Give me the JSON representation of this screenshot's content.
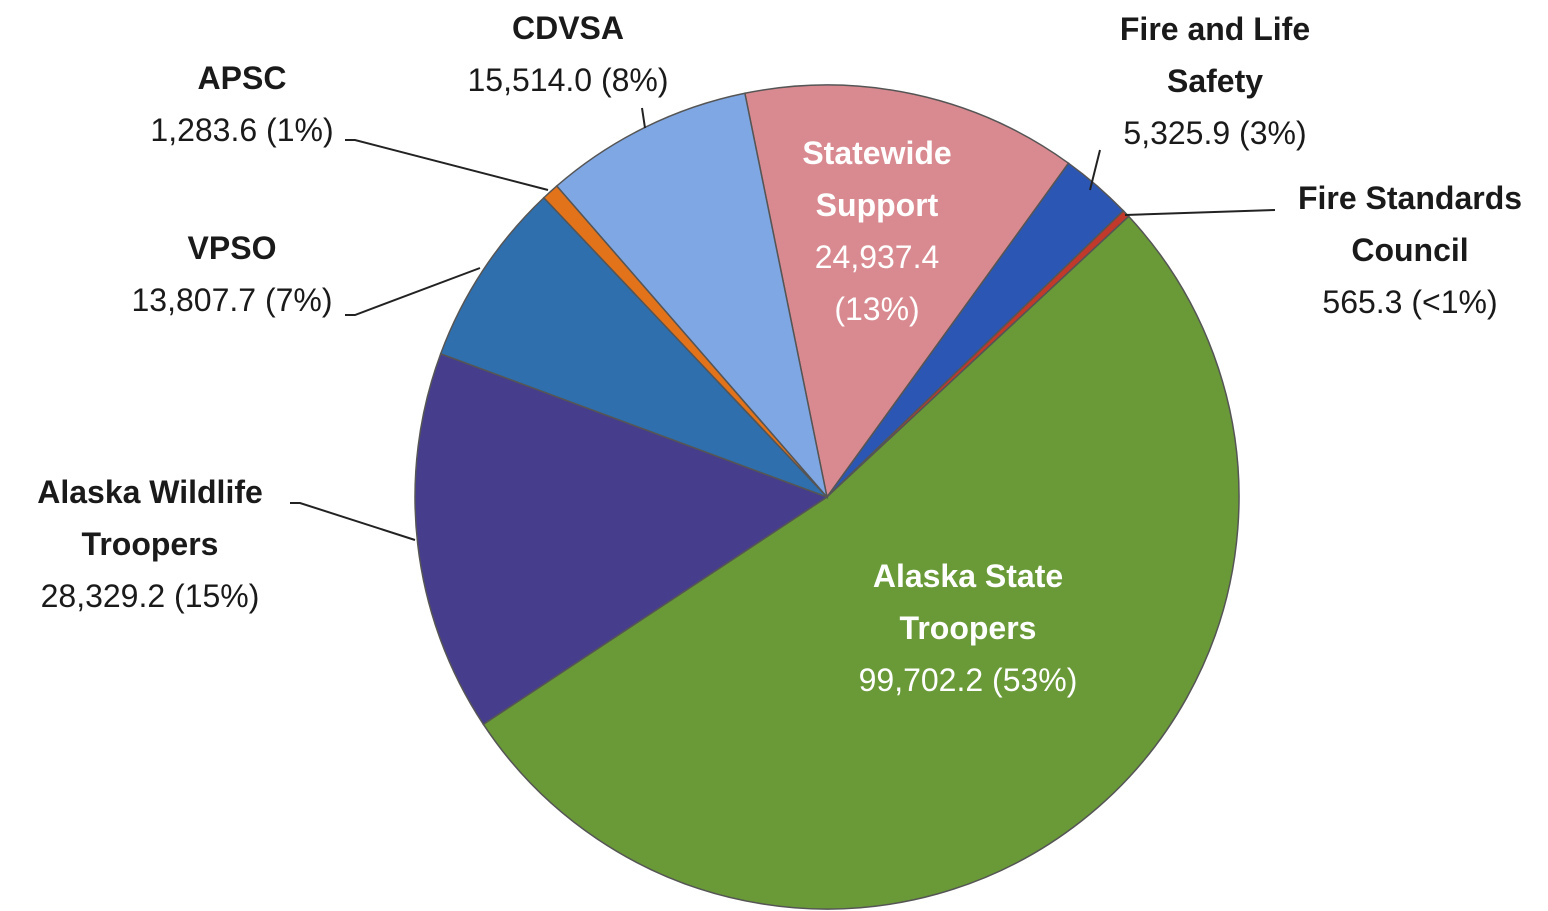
{
  "chart_data": {
    "type": "pie",
    "categories": [
      "Statewide Support",
      "Fire and Life Safety",
      "Fire Standards Council",
      "Alaska State Troopers",
      "Alaska Wildlife Troopers",
      "VPSO",
      "APSC",
      "CDVSA"
    ],
    "values": [
      24937.4,
      5325.9,
      565.3,
      99702.2,
      28329.2,
      13807.7,
      1283.6,
      15514.0
    ],
    "value_labels": [
      "24,937.4 (13%)",
      "5,325.9 (3%)",
      "565.3 (<1%)",
      "99,702.2 (53%)",
      "28,329.2 (15%)",
      "13,807.7 (7%)",
      "1,283.6 (1%)",
      "15,514.0 (8%)"
    ],
    "colors": [
      "#d98a90",
      "#2b56b3",
      "#c0392b",
      "#6a9a38",
      "#463e8c",
      "#2f6fae",
      "#e3731a",
      "#7fa7e4"
    ]
  }
}
